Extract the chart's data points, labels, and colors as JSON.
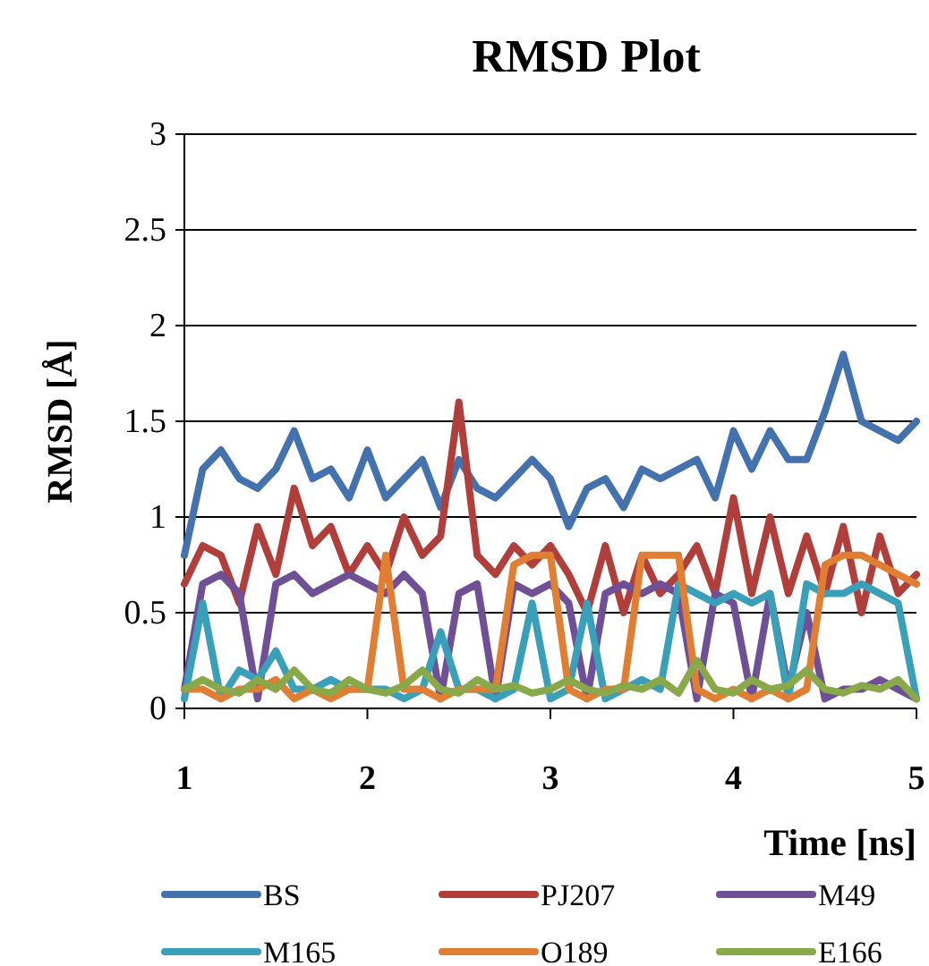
{
  "chart_data": {
    "type": "line",
    "title": "RMSD Plot",
    "xlabel": "Time [ns]",
    "ylabel": "RMSD [Å]",
    "x": [
      1,
      1.1,
      1.2,
      1.3,
      1.4,
      1.5,
      1.6,
      1.7,
      1.8,
      1.9,
      2,
      2.1,
      2.2,
      2.3,
      2.4,
      2.5,
      2.6,
      2.7,
      2.8,
      2.9,
      3,
      3.1,
      3.2,
      3.3,
      3.4,
      3.5,
      3.6,
      3.7,
      3.8,
      3.9,
      4,
      4.1,
      4.2,
      4.3,
      4.4,
      4.5,
      4.6,
      4.7,
      4.8,
      4.9,
      5
    ],
    "xlim": [
      1,
      5
    ],
    "xticks": [
      1,
      2,
      3,
      4,
      5
    ],
    "ylim": [
      0,
      3
    ],
    "yticks": [
      0,
      0.5,
      1,
      1.5,
      2,
      2.5,
      3
    ],
    "grid": "y",
    "legend": "bottom",
    "marker": "none",
    "line_style": "solid",
    "series": [
      {
        "name": "BS",
        "color": "#4372ae",
        "values": [
          0.8,
          1.25,
          1.35,
          1.2,
          1.15,
          1.25,
          1.45,
          1.2,
          1.25,
          1.1,
          1.35,
          1.1,
          1.2,
          1.3,
          1.05,
          1.3,
          1.15,
          1.1,
          1.2,
          1.3,
          1.2,
          0.95,
          1.15,
          1.2,
          1.05,
          1.25,
          1.2,
          1.25,
          1.3,
          1.1,
          1.45,
          1.25,
          1.45,
          1.3,
          1.3,
          1.55,
          1.85,
          1.5,
          1.45,
          1.4,
          1.5
        ]
      },
      {
        "name": "PJ207",
        "color": "#b03f3c",
        "values": [
          0.65,
          0.85,
          0.8,
          0.55,
          0.95,
          0.7,
          1.15,
          0.85,
          0.95,
          0.7,
          0.85,
          0.7,
          1,
          0.8,
          0.9,
          1.6,
          0.8,
          0.7,
          0.85,
          0.75,
          0.85,
          0.7,
          0.5,
          0.85,
          0.5,
          0.8,
          0.6,
          0.7,
          0.85,
          0.6,
          1.1,
          0.6,
          1,
          0.6,
          0.9,
          0.6,
          0.95,
          0.5,
          0.9,
          0.6,
          0.7
        ]
      },
      {
        "name": "M49",
        "color": "#6f4f95",
        "values": [
          0.1,
          0.65,
          0.7,
          0.6,
          0.05,
          0.65,
          0.7,
          0.6,
          0.65,
          0.7,
          0.65,
          0.6,
          0.7,
          0.6,
          0.05,
          0.6,
          0.65,
          0.05,
          0.65,
          0.6,
          0.65,
          0.55,
          0.05,
          0.6,
          0.65,
          0.6,
          0.65,
          0.6,
          0.05,
          0.6,
          0.55,
          0.05,
          0.6,
          0.1,
          0.5,
          0.05,
          0.1,
          0.1,
          0.15,
          0.1,
          0.05
        ]
      },
      {
        "name": "M165",
        "color": "#3a9fb8",
        "values": [
          0.05,
          0.55,
          0.05,
          0.2,
          0.15,
          0.3,
          0.1,
          0.1,
          0.15,
          0.1,
          0.1,
          0.1,
          0.05,
          0.1,
          0.4,
          0.1,
          0.1,
          0.05,
          0.1,
          0.55,
          0.05,
          0.1,
          0.55,
          0.05,
          0.1,
          0.15,
          0.1,
          0.65,
          0.6,
          0.55,
          0.6,
          0.55,
          0.6,
          0.05,
          0.65,
          0.6,
          0.6,
          0.65,
          0.6,
          0.55,
          0.05
        ]
      },
      {
        "name": "O189",
        "color": "#e07f33",
        "values": [
          0.1,
          0.1,
          0.05,
          0.1,
          0.1,
          0.15,
          0.05,
          0.1,
          0.05,
          0.1,
          0.1,
          0.8,
          0.1,
          0.1,
          0.05,
          0.1,
          0.1,
          0.1,
          0.75,
          0.8,
          0.8,
          0.1,
          0.05,
          0.1,
          0.1,
          0.8,
          0.8,
          0.8,
          0.1,
          0.05,
          0.1,
          0.05,
          0.1,
          0.05,
          0.1,
          0.75,
          0.8,
          0.8,
          0.75,
          0.7,
          0.65
        ]
      },
      {
        "name": "E166",
        "color": "#88a84a",
        "values": [
          0.1,
          0.15,
          0.1,
          0.08,
          0.15,
          0.1,
          0.2,
          0.1,
          0.08,
          0.15,
          0.1,
          0.08,
          0.12,
          0.2,
          0.1,
          0.08,
          0.15,
          0.1,
          0.12,
          0.08,
          0.1,
          0.15,
          0.1,
          0.08,
          0.12,
          0.1,
          0.15,
          0.08,
          0.25,
          0.1,
          0.08,
          0.15,
          0.1,
          0.12,
          0.2,
          0.1,
          0.08,
          0.12,
          0.1,
          0.15,
          0.05
        ]
      }
    ]
  }
}
